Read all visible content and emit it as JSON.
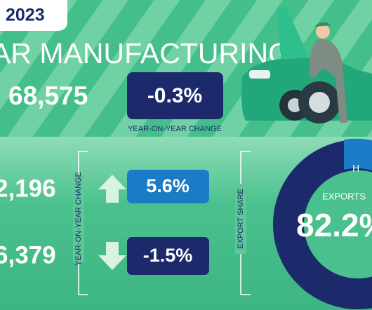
{
  "header": {
    "year": "2023",
    "title": "AR MANUFACTURING"
  },
  "headline": {
    "value": "68,575",
    "change": "-0.3%",
    "caption": "YEAR-ON-YEAR CHANGE"
  },
  "stats": {
    "caption": "YEAR-ON-YEAR CHANGE",
    "rows": [
      {
        "value": "2,196",
        "change": "5.6%"
      },
      {
        "value": "6,379",
        "change": "-1.5%"
      }
    ]
  },
  "export": {
    "caption": "EXPORT SHARE",
    "label": "EXPORTS",
    "value": "82.2%",
    "segment_label": "H"
  }
}
